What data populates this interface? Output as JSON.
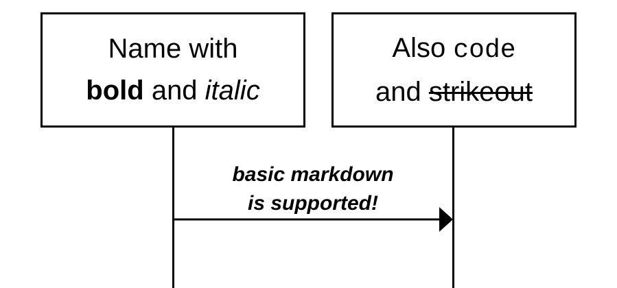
{
  "participants": [
    {
      "line1": "Name with",
      "line2_bold": "bold",
      "line2_plain": " and ",
      "line2_italic": "italic"
    },
    {
      "line1_plain": "Also ",
      "line1_code": "code",
      "line2_plain": "and ",
      "line2_strike": "strikeout"
    }
  ],
  "message": {
    "line1": "basic markdown",
    "line2": "is supported!"
  }
}
